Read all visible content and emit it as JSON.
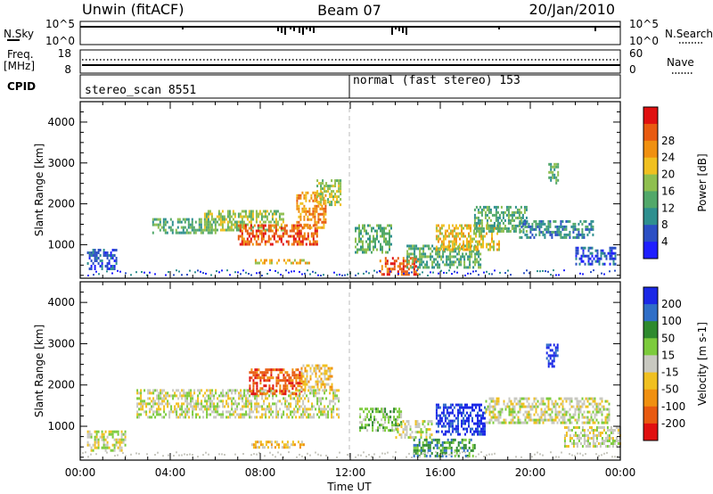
{
  "header": {
    "station": "Unwin (fitACF)",
    "beam": "Beam 07",
    "date": "20/Jan/2010"
  },
  "strips": {
    "nsky_label": "N.Sky",
    "nsky_ticks": [
      "10^5",
      "10^0"
    ],
    "nsearch_label": "N.Search",
    "nsearch_ticks": [
      "10^5",
      "10^0"
    ],
    "freq_label": "Freq.",
    "freq_unit": "[MHz]",
    "freq_ticks": [
      "18",
      "8"
    ],
    "nave_label": "Nave",
    "nave_ticks": [
      "60",
      "0"
    ],
    "cpid_label": "CPID",
    "cpid_left": "stereo_scan 8551",
    "cpid_right": "normal (fast stereo) 153"
  },
  "chart_data": [
    {
      "type": "heatmap",
      "panel": "power",
      "ylabel": "Slant Range [km]",
      "xlabel": "Time UT",
      "x_range_hours": [
        0,
        24
      ],
      "x_ticks": [
        "00:00",
        "04:00",
        "08:00",
        "12:00",
        "16:00",
        "20:00",
        "00:00"
      ],
      "y_ticks": [
        "1000",
        "2000",
        "3000",
        "4000"
      ],
      "ylim": [
        180,
        4500
      ],
      "colorbar": {
        "label": "Power [dB]",
        "ticks": [
          "4",
          "8",
          "12",
          "16",
          "20",
          "24",
          "28"
        ],
        "colors": [
          "#1f1fff",
          "#2b4fc4",
          "#2e8f8f",
          "#52a86a",
          "#8fbf4f",
          "#f0c020",
          "#f09010",
          "#e85a10",
          "#e01010"
        ]
      },
      "bands": [
        {
          "t0": 0.3,
          "t1": 1.6,
          "r0": 420,
          "r1": 900,
          "level": 1
        },
        {
          "t0": 3.2,
          "t1": 6.0,
          "r0": 1300,
          "r1": 1650,
          "level": 3
        },
        {
          "t0": 5.5,
          "t1": 9.0,
          "r0": 1350,
          "r1": 1850,
          "level": 4
        },
        {
          "t0": 7.0,
          "t1": 10.5,
          "r0": 1000,
          "r1": 1500,
          "level": 7
        },
        {
          "t0": 9.6,
          "t1": 10.9,
          "r0": 1400,
          "r1": 2300,
          "level": 6
        },
        {
          "t0": 10.5,
          "t1": 11.6,
          "r0": 1950,
          "r1": 2600,
          "level": 4
        },
        {
          "t0": 7.6,
          "t1": 10.2,
          "r0": 520,
          "r1": 650,
          "level": 5
        },
        {
          "t0": 12.2,
          "t1": 13.8,
          "r0": 800,
          "r1": 1500,
          "level": 3
        },
        {
          "t0": 13.3,
          "t1": 15.0,
          "r0": 280,
          "r1": 700,
          "level": 7
        },
        {
          "t0": 14.5,
          "t1": 17.8,
          "r0": 450,
          "r1": 1000,
          "level": 3
        },
        {
          "t0": 15.8,
          "t1": 18.6,
          "r0": 900,
          "r1": 1500,
          "level": 5
        },
        {
          "t0": 17.5,
          "t1": 19.8,
          "r0": 1300,
          "r1": 1950,
          "level": 3
        },
        {
          "t0": 19.5,
          "t1": 22.8,
          "r0": 1200,
          "r1": 1600,
          "level": 2
        },
        {
          "t0": 20.8,
          "t1": 21.2,
          "r0": 2500,
          "r1": 3000,
          "level": 3
        },
        {
          "t0": 22.0,
          "t1": 23.8,
          "r0": 550,
          "r1": 950,
          "level": 1
        }
      ]
    },
    {
      "type": "heatmap",
      "panel": "velocity",
      "ylabel": "Slant Range [km]",
      "xlabel": "Time UT",
      "x_range_hours": [
        0,
        24
      ],
      "x_ticks": [
        "00:00",
        "04:00",
        "08:00",
        "12:00",
        "16:00",
        "20:00",
        "00:00"
      ],
      "y_ticks": [
        "1000",
        "2000",
        "3000",
        "4000"
      ],
      "ylim": [
        180,
        4500
      ],
      "colorbar": {
        "label": "Velocity [m s-1]",
        "ticks": [
          "200",
          "100",
          "50",
          "15",
          "-15",
          "-50",
          "-100",
          "-200"
        ],
        "colors": [
          "#1a28e6",
          "#2f6ec7",
          "#2e8a2e",
          "#7ccb3c",
          "#c8c8c0",
          "#f0c020",
          "#f09010",
          "#e85a10",
          "#e01010"
        ]
      },
      "bands": [
        {
          "t0": 0.3,
          "t1": 2.0,
          "r0": 420,
          "r1": 900,
          "level": 4
        },
        {
          "t0": 2.5,
          "t1": 11.5,
          "r0": 1250,
          "r1": 1900,
          "level": 4
        },
        {
          "t0": 7.5,
          "t1": 9.8,
          "r0": 1800,
          "r1": 2400,
          "level": 7
        },
        {
          "t0": 9.8,
          "t1": 11.2,
          "r0": 1900,
          "r1": 2500,
          "level": 5
        },
        {
          "t0": 7.6,
          "t1": 10.0,
          "r0": 520,
          "r1": 650,
          "level": 5
        },
        {
          "t0": 12.4,
          "t1": 14.3,
          "r0": 900,
          "r1": 1450,
          "level": 3
        },
        {
          "t0": 14.0,
          "t1": 15.6,
          "r0": 700,
          "r1": 1150,
          "level": 4
        },
        {
          "t0": 15.8,
          "t1": 18.0,
          "r0": 800,
          "r1": 1550,
          "level": 0
        },
        {
          "t0": 14.8,
          "t1": 17.5,
          "r0": 300,
          "r1": 700,
          "level": 2
        },
        {
          "t0": 18.0,
          "t1": 23.5,
          "r0": 1100,
          "r1": 1700,
          "level": 4
        },
        {
          "t0": 20.7,
          "t1": 21.2,
          "r0": 2450,
          "r1": 3000,
          "level": 0
        },
        {
          "t0": 21.5,
          "t1": 24.0,
          "r0": 500,
          "r1": 1000,
          "level": 4
        }
      ]
    }
  ]
}
